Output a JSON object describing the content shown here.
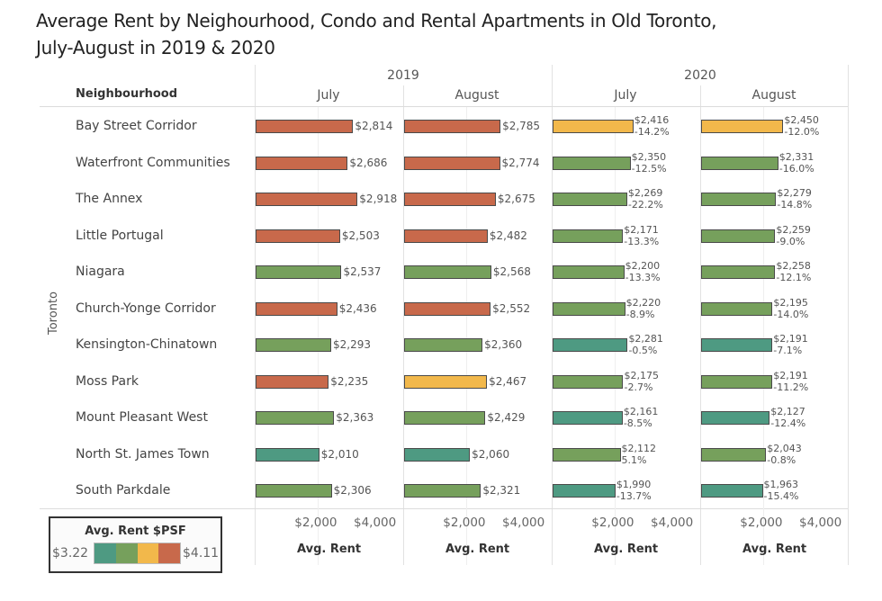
{
  "chart_data": {
    "type": "bar",
    "title": "Average Rent by Neighourhood, Condo and Rental Apartments in Old Toronto, July-August in 2019 & 2020",
    "row_group_label": "Toronto",
    "row_header": "Neighbourhood",
    "xlabel": "Avg. Rent",
    "xlim": [
      500,
      4000
    ],
    "xticks": [
      "$2,000",
      "$4,000"
    ],
    "xtick_values": [
      2000,
      4000
    ],
    "years": [
      "2019",
      "2020"
    ],
    "columns": [
      {
        "year": "2019",
        "month": "July"
      },
      {
        "year": "2019",
        "month": "August"
      },
      {
        "year": "2020",
        "month": "July"
      },
      {
        "year": "2020",
        "month": "August"
      }
    ],
    "categories": [
      "Bay Street Corridor",
      "Waterfront Communities",
      "The Annex",
      "Little Portugal",
      "Niagara",
      "Church-Yonge Corridor",
      "Kensington-Chinatown",
      "Moss Park",
      "Mount Pleasant West",
      "North St. James Town",
      "South Parkdale"
    ],
    "series": [
      {
        "name": "2019 July",
        "values": [
          2814,
          2686,
          2918,
          2503,
          2537,
          2436,
          2293,
          2235,
          2363,
          2010,
          2306
        ],
        "labels": [
          "$2,814",
          "$2,686",
          "$2,918",
          "$2,503",
          "$2,537",
          "$2,436",
          "$2,293",
          "$2,235",
          "$2,363",
          "$2,010",
          "$2,306"
        ],
        "color_bin": [
          3,
          3,
          3,
          3,
          1,
          3,
          1,
          3,
          1,
          0,
          1
        ]
      },
      {
        "name": "2019 August",
        "values": [
          2785,
          2774,
          2675,
          2482,
          2568,
          2552,
          2360,
          2467,
          2429,
          2060,
          2321
        ],
        "labels": [
          "$2,785",
          "$2,774",
          "$2,675",
          "$2,482",
          "$2,568",
          "$2,552",
          "$2,360",
          "$2,467",
          "$2,429",
          "$2,060",
          "$2,321"
        ],
        "color_bin": [
          3,
          3,
          3,
          3,
          1,
          3,
          1,
          2,
          1,
          0,
          1
        ]
      },
      {
        "name": "2020 July",
        "values": [
          2416,
          2350,
          2269,
          2171,
          2200,
          2220,
          2281,
          2175,
          2161,
          2112,
          1990
        ],
        "labels": [
          "$2,416",
          "$2,350",
          "$2,269",
          "$2,171",
          "$2,200",
          "$2,220",
          "$2,281",
          "$2,175",
          "$2,161",
          "$2,112",
          "$1,990"
        ],
        "changes": [
          "-14.2%",
          "-12.5%",
          "-22.2%",
          "-13.3%",
          "-13.3%",
          "-8.9%",
          "-0.5%",
          "-2.7%",
          "-8.5%",
          "5.1%",
          "-13.7%"
        ],
        "color_bin": [
          2,
          1,
          1,
          1,
          1,
          1,
          0,
          1,
          0,
          1,
          0
        ]
      },
      {
        "name": "2020 August",
        "values": [
          2450,
          2331,
          2279,
          2259,
          2258,
          2195,
          2191,
          2191,
          2127,
          2043,
          1963
        ],
        "labels": [
          "$2,450",
          "$2,331",
          "$2,279",
          "$2,259",
          "$2,258",
          "$2,195",
          "$2,191",
          "$2,191",
          "$2,127",
          "$2,043",
          "$1,963"
        ],
        "changes": [
          "-12.0%",
          "-16.0%",
          "-14.8%",
          "-9.0%",
          "-12.1%",
          "-14.0%",
          "-7.1%",
          "-11.2%",
          "-12.4%",
          "-0.8%",
          "-15.4%"
        ],
        "color_bin": [
          2,
          1,
          1,
          1,
          1,
          1,
          0,
          1,
          0,
          1,
          0
        ]
      }
    ],
    "legend": {
      "title": "Avg. Rent $PSF",
      "min_label": "$3.22",
      "max_label": "$4.11",
      "colors": [
        "#4e9a82",
        "#76a05c",
        "#f2b84b",
        "#c8694b"
      ],
      "placement": "bottom-left"
    },
    "grid": true
  }
}
